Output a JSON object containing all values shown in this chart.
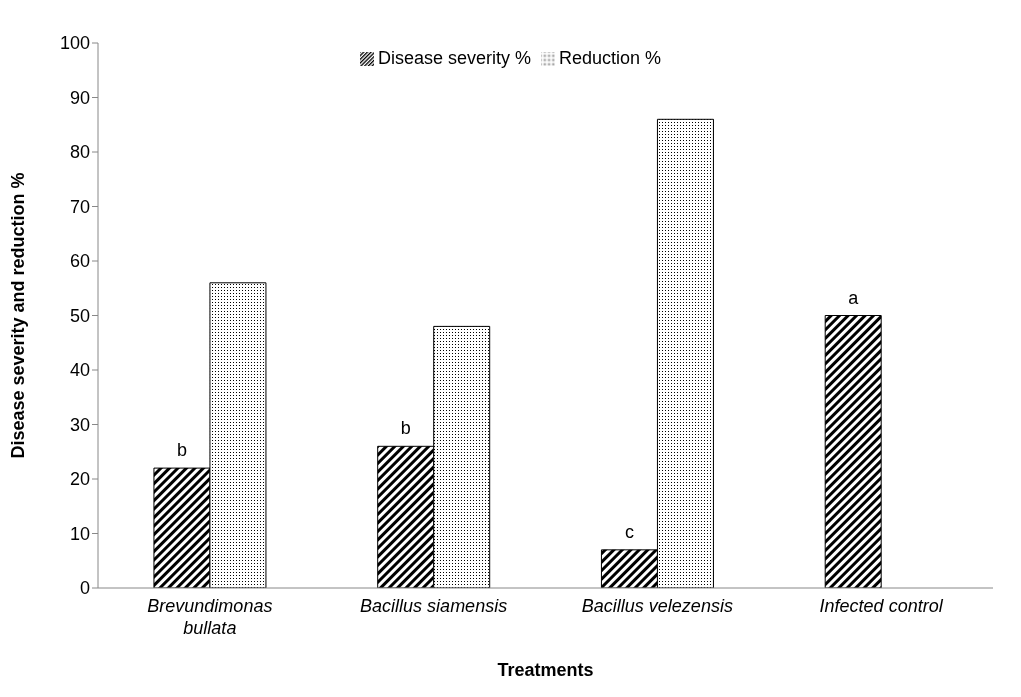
{
  "chart_data": {
    "type": "bar",
    "xlabel": "Treatments",
    "ylabel": "Disease severity and reduction  %",
    "categories": [
      "Brevundimonas bullata",
      "Bacillus siamensis",
      "Bacillus velezensis",
      "Infected control"
    ],
    "series": [
      {
        "name": "Disease severity %",
        "color": "#000000",
        "values": [
          22,
          26,
          7,
          50
        ]
      },
      {
        "name": "Reduction %",
        "color": "#000000",
        "values": [
          56,
          48,
          86,
          null
        ]
      }
    ],
    "ylim": [
      0,
      100
    ],
    "yticks": [
      0,
      10,
      20,
      30,
      40,
      50,
      60,
      70,
      80,
      90,
      100
    ],
    "grid": false,
    "legend": "top",
    "annotations": [
      {
        "text": "b",
        "x": "Brevundimonas bullata",
        "y": 22
      },
      {
        "text": "b",
        "x": "Bacillus siamensis",
        "y": 26
      },
      {
        "text": "c",
        "x": "Bacillus velezensis",
        "y": 7
      },
      {
        "text": "a",
        "x": "Infected control",
        "y": 50
      }
    ]
  }
}
